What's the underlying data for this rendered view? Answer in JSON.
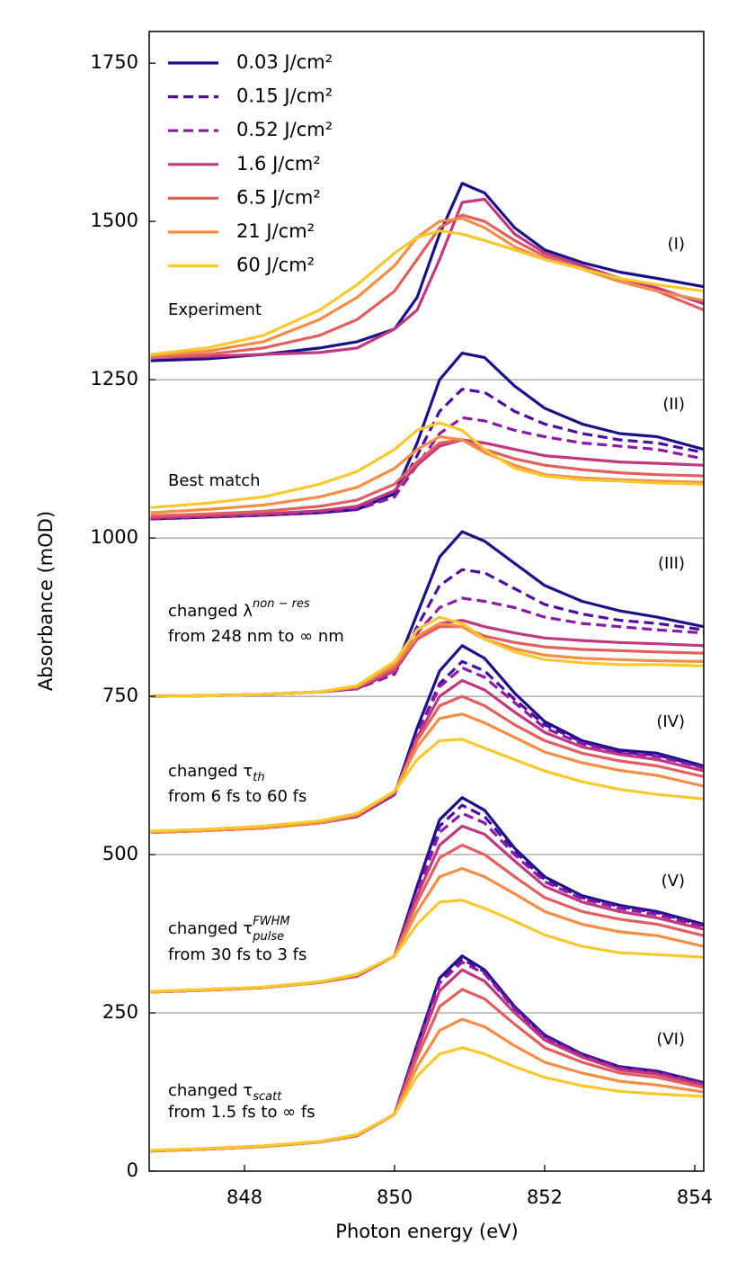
{
  "chart_data": {
    "type": "line",
    "xlabel": "Photon energy (eV)",
    "ylabel": "Absorbance (mOD)",
    "xlim": [
      846.73,
      854.12
    ],
    "ylim": [
      0,
      1800
    ],
    "xticks": [
      848,
      850,
      852,
      854
    ],
    "yticks": [
      0,
      250,
      500,
      750,
      1000,
      1250,
      1500,
      1750
    ],
    "hlines": [
      1250,
      1000,
      750,
      500,
      250
    ],
    "legend": "upper left",
    "x": [
      846.75,
      847.5,
      848.25,
      849,
      849.5,
      850,
      850.3,
      850.6,
      850.9,
      851.2,
      851.6,
      852,
      852.5,
      853,
      853.5,
      854.12
    ],
    "panels": [
      {
        "label": "(I)",
        "note": [
          {
            "text": "Experiment"
          }
        ]
      },
      {
        "label": "(II)",
        "note": [
          {
            "text": "Best match"
          }
        ]
      },
      {
        "label": "(III)",
        "note": [
          {
            "text": "changed λ",
            "sup": "non − res"
          },
          {
            "text": "from 248 nm to ∞ nm"
          }
        ]
      },
      {
        "label": "(IV)",
        "note": [
          {
            "text": "changed τ",
            "sub": "th"
          },
          {
            "text": "from 6 fs to 60 fs"
          }
        ]
      },
      {
        "label": "(V)",
        "note": [
          {
            "text": "changed τ",
            "sup": "FWHM",
            "sub": "pulse"
          },
          {
            "text": "from 30 fs to 3 fs"
          }
        ]
      },
      {
        "label": "(VI)",
        "note": [
          {
            "text": "changed τ",
            "sub": "scatt"
          },
          {
            "text": "from 1.5 fs to ∞ fs"
          }
        ]
      }
    ],
    "series": [
      {
        "name": "0.03 J/cm²",
        "color": "#1b1088",
        "dashed": false,
        "values": [
          [
            1280,
            1283,
            1290,
            1300,
            1310,
            1330,
            1380,
            1480,
            1560,
            1545,
            1490,
            1455,
            1435,
            1420,
            1410,
            1397
          ],
          [
            1030,
            1033,
            1036,
            1040,
            1045,
            1070,
            1150,
            1250,
            1292,
            1285,
            1240,
            1205,
            1180,
            1165,
            1160,
            1140
          ],
          [
            750,
            751,
            753,
            757,
            762,
            790,
            880,
            970,
            1010,
            995,
            960,
            925,
            900,
            885,
            875,
            860
          ],
          [
            535,
            538,
            542,
            550,
            560,
            595,
            700,
            790,
            830,
            810,
            755,
            710,
            680,
            665,
            660,
            640
          ],
          [
            283,
            286,
            290,
            298,
            308,
            340,
            450,
            555,
            590,
            570,
            510,
            465,
            435,
            420,
            410,
            390
          ],
          [
            32,
            35,
            39,
            46,
            56,
            90,
            200,
            305,
            340,
            318,
            260,
            215,
            185,
            165,
            158,
            140
          ]
        ]
      },
      {
        "name": "0.15 J/cm²",
        "color": "#4c0ca0",
        "dashed": true,
        "values": [
          null,
          [
            1030,
            1033,
            1036,
            1040,
            1045,
            1065,
            1130,
            1200,
            1235,
            1230,
            1200,
            1180,
            1165,
            1155,
            1150,
            1135
          ],
          [
            750,
            751,
            753,
            757,
            762,
            785,
            860,
            925,
            950,
            945,
            920,
            895,
            880,
            870,
            865,
            855
          ],
          [
            535,
            538,
            542,
            550,
            560,
            595,
            690,
            770,
            805,
            790,
            745,
            705,
            678,
            662,
            657,
            638
          ],
          [
            283,
            286,
            290,
            298,
            308,
            340,
            445,
            545,
            578,
            560,
            505,
            460,
            432,
            418,
            408,
            388
          ],
          [
            32,
            35,
            39,
            46,
            56,
            90,
            198,
            300,
            335,
            315,
            258,
            213,
            184,
            164,
            157,
            139
          ]
        ]
      },
      {
        "name": "0.52 J/cm²",
        "color": "#8b1aa6",
        "dashed": true,
        "values": [
          null,
          [
            1030,
            1033,
            1036,
            1041,
            1047,
            1065,
            1115,
            1165,
            1190,
            1185,
            1170,
            1160,
            1150,
            1145,
            1140,
            1125
          ],
          [
            750,
            751,
            753,
            757,
            762,
            785,
            850,
            890,
            905,
            900,
            890,
            875,
            865,
            860,
            855,
            850
          ],
          [
            535,
            538,
            542,
            550,
            560,
            595,
            690,
            765,
            795,
            780,
            740,
            700,
            675,
            660,
            655,
            637
          ],
          [
            283,
            286,
            290,
            298,
            308,
            340,
            440,
            535,
            565,
            550,
            500,
            457,
            430,
            415,
            405,
            386
          ],
          [
            32,
            35,
            39,
            46,
            56,
            90,
            196,
            297,
            330,
            312,
            256,
            212,
            183,
            163,
            156,
            138
          ]
        ]
      },
      {
        "name": "1.6 J/cm²",
        "color": "#c0397f",
        "dashed": false,
        "values": [
          [
            1285,
            1287,
            1290,
            1293,
            1300,
            1330,
            1360,
            1440,
            1530,
            1535,
            1480,
            1450,
            1430,
            1410,
            1395,
            1370
          ],
          [
            1032,
            1035,
            1038,
            1043,
            1050,
            1075,
            1115,
            1145,
            1155,
            1150,
            1140,
            1130,
            1125,
            1120,
            1118,
            1115
          ],
          [
            750,
            751,
            753,
            757,
            763,
            790,
            840,
            865,
            870,
            860,
            850,
            842,
            838,
            835,
            833,
            830
          ],
          [
            535,
            538,
            542,
            550,
            560,
            597,
            685,
            750,
            775,
            760,
            725,
            693,
            670,
            658,
            650,
            632
          ],
          [
            283,
            286,
            290,
            298,
            308,
            340,
            435,
            515,
            545,
            532,
            490,
            450,
            425,
            410,
            400,
            382
          ],
          [
            32,
            35,
            39,
            46,
            56,
            90,
            190,
            285,
            318,
            300,
            250,
            207,
            180,
            160,
            153,
            136
          ]
        ]
      },
      {
        "name": "6.5 J/cm²",
        "color": "#e1605f",
        "dashed": false,
        "values": [
          [
            1285,
            1290,
            1300,
            1320,
            1345,
            1390,
            1440,
            1490,
            1510,
            1500,
            1470,
            1445,
            1425,
            1405,
            1390,
            1360
          ],
          [
            1035,
            1038,
            1042,
            1050,
            1060,
            1085,
            1120,
            1150,
            1155,
            1140,
            1125,
            1115,
            1108,
            1103,
            1100,
            1098
          ],
          [
            750,
            751,
            753,
            757,
            764,
            795,
            840,
            860,
            860,
            845,
            835,
            828,
            824,
            822,
            820,
            818
          ],
          [
            535,
            538,
            542,
            550,
            562,
            598,
            680,
            735,
            750,
            735,
            705,
            680,
            660,
            648,
            640,
            623
          ],
          [
            283,
            286,
            290,
            298,
            309,
            340,
            425,
            495,
            515,
            500,
            465,
            432,
            410,
            398,
            390,
            372
          ],
          [
            32,
            35,
            39,
            46,
            56,
            90,
            180,
            260,
            287,
            272,
            232,
            195,
            172,
            155,
            148,
            132
          ]
        ]
      },
      {
        "name": "21 J/cm²",
        "color": "#f48d45",
        "dashed": false,
        "values": [
          [
            1288,
            1295,
            1310,
            1345,
            1380,
            1430,
            1475,
            1500,
            1505,
            1490,
            1460,
            1440,
            1425,
            1405,
            1390,
            1375
          ],
          [
            1040,
            1045,
            1052,
            1065,
            1080,
            1110,
            1140,
            1160,
            1155,
            1135,
            1115,
            1100,
            1095,
            1092,
            1090,
            1088
          ],
          [
            750,
            751,
            753,
            757,
            765,
            800,
            845,
            865,
            860,
            840,
            825,
            815,
            810,
            808,
            806,
            805
          ],
          [
            535,
            538,
            542,
            550,
            563,
            600,
            670,
            715,
            722,
            708,
            685,
            662,
            645,
            633,
            625,
            608
          ],
          [
            283,
            286,
            290,
            298,
            310,
            340,
            410,
            465,
            478,
            465,
            438,
            410,
            390,
            378,
            372,
            355
          ],
          [
            32,
            35,
            39,
            46,
            57,
            90,
            165,
            222,
            240,
            228,
            198,
            172,
            155,
            142,
            136,
            125
          ]
        ]
      },
      {
        "name": "60 J/cm²",
        "color": "#f8c92e",
        "dashed": false,
        "values": [
          [
            1290,
            1300,
            1320,
            1360,
            1400,
            1450,
            1475,
            1485,
            1480,
            1470,
            1455,
            1440,
            1425,
            1410,
            1400,
            1390
          ],
          [
            1048,
            1055,
            1065,
            1085,
            1105,
            1140,
            1170,
            1182,
            1170,
            1140,
            1110,
            1098,
            1092,
            1090,
            1087,
            1085
          ],
          [
            750,
            751,
            753,
            757,
            767,
            805,
            855,
            875,
            865,
            840,
            820,
            808,
            803,
            800,
            800,
            798
          ],
          [
            537,
            540,
            545,
            553,
            565,
            600,
            650,
            680,
            682,
            668,
            650,
            632,
            615,
            603,
            595,
            588
          ],
          [
            284,
            287,
            291,
            299,
            311,
            340,
            390,
            425,
            428,
            415,
            395,
            373,
            355,
            345,
            342,
            338
          ],
          [
            33,
            36,
            40,
            47,
            58,
            90,
            150,
            185,
            195,
            185,
            165,
            148,
            135,
            126,
            122,
            118
          ]
        ]
      }
    ]
  }
}
